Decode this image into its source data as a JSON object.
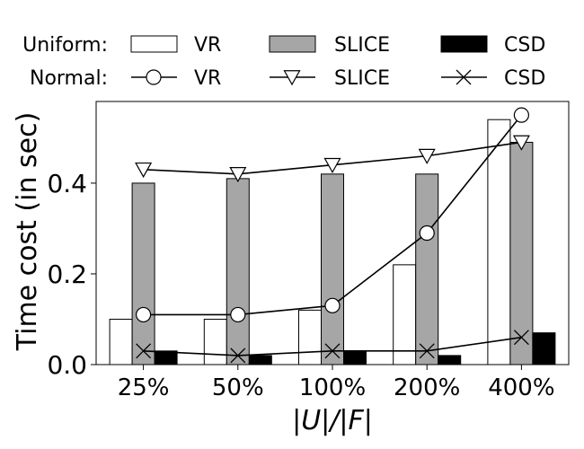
{
  "chart_data": {
    "type": "bar",
    "title": "",
    "xlabel": "|U|/|F|",
    "ylabel": "Time cost (in sec)",
    "categories": [
      "25%",
      "50%",
      "100%",
      "200%",
      "400%"
    ],
    "ylim": [
      0,
      0.58
    ],
    "yticks": [
      "0.0",
      "0.2",
      "0.4"
    ],
    "ytick_values": [
      0.0,
      0.2,
      0.4
    ],
    "grid": false,
    "legend_position": "top",
    "legend_groups": [
      {
        "label": "Uniform:",
        "kind": "bars"
      },
      {
        "label": "Normal:",
        "kind": "lines"
      }
    ],
    "bar_series": [
      {
        "name": "VR",
        "color": "#ffffff",
        "values": [
          0.1,
          0.1,
          0.12,
          0.22,
          0.54
        ]
      },
      {
        "name": "SLICE",
        "color": "#a6a6a6",
        "values": [
          0.4,
          0.41,
          0.42,
          0.42,
          0.49
        ]
      },
      {
        "name": "CSD",
        "color": "#000000",
        "values": [
          0.03,
          0.02,
          0.03,
          0.02,
          0.07
        ]
      }
    ],
    "line_series": [
      {
        "name": "VR",
        "marker": "circle",
        "values": [
          0.11,
          0.11,
          0.13,
          0.29,
          0.55
        ]
      },
      {
        "name": "SLICE",
        "marker": "triangle-down",
        "values": [
          0.43,
          0.42,
          0.44,
          0.46,
          0.49
        ]
      },
      {
        "name": "CSD",
        "marker": "x",
        "values": [
          0.03,
          0.02,
          0.03,
          0.03,
          0.06
        ]
      }
    ]
  }
}
